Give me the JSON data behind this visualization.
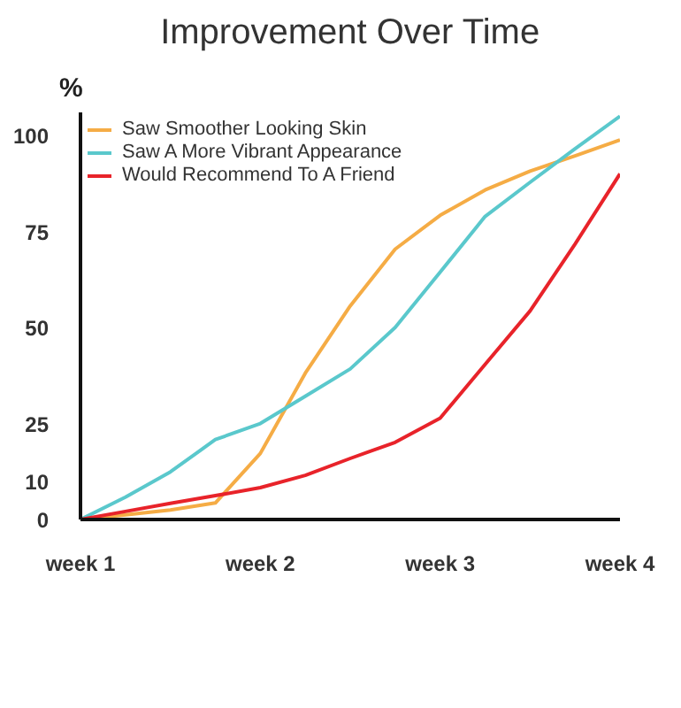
{
  "chart_data": {
    "type": "line",
    "title": "Improvement Over Time",
    "ylabel": "%",
    "categories": [
      "week 1",
      null,
      null,
      null,
      "week 2",
      null,
      null,
      null,
      "week 3",
      null,
      null,
      null,
      "week 4"
    ],
    "ylim": [
      0,
      106
    ],
    "yticks": [
      0,
      10,
      25,
      50,
      75,
      100
    ],
    "legend": "top left",
    "line_style": "solid",
    "series": [
      {
        "name": "Saw Smoother Looking Skin",
        "color": "#f5ac45",
        "values": [
          0,
          1.2,
          2.5,
          4.3,
          17.2,
          38.1,
          55.6,
          70.4,
          79.2,
          85.8,
          90.7,
          94.7,
          98.8
        ]
      },
      {
        "name": "Saw A More Vibrant Appearance",
        "color": "#5ac8cc",
        "values": [
          0,
          5.8,
          12.4,
          20.8,
          25,
          32.1,
          39.2,
          50,
          64.4,
          78.9,
          87.8,
          96.5,
          105
        ]
      },
      {
        "name": "Would Recommend To A Friend",
        "color": "#e8232a",
        "values": [
          0,
          2.1,
          4.2,
          6.2,
          8.3,
          11.5,
          15.9,
          20.1,
          26.4,
          40.4,
          54.3,
          71.7,
          90
        ]
      }
    ]
  }
}
